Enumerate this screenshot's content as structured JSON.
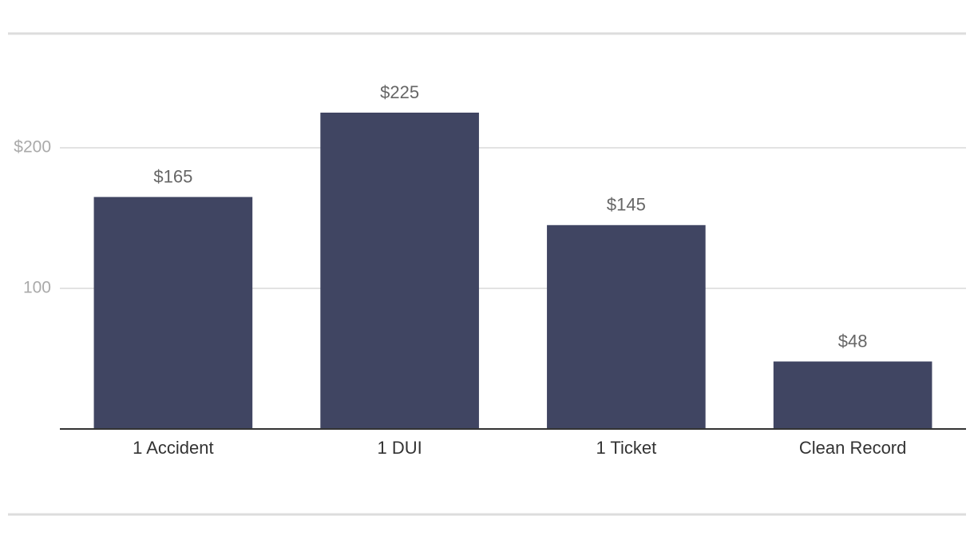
{
  "chart_data": {
    "type": "bar",
    "categories": [
      "1 Accident",
      "1 DUI",
      "1 Ticket",
      "Clean Record"
    ],
    "values": [
      165,
      225,
      145,
      48
    ],
    "value_labels": [
      "$165",
      "$225",
      "$145",
      "$48"
    ],
    "color": "#404562",
    "ylim": [
      0,
      250
    ],
    "yticks": [
      100,
      {
        "value": 200,
        "label": "$200"
      }
    ],
    "grid": true
  }
}
